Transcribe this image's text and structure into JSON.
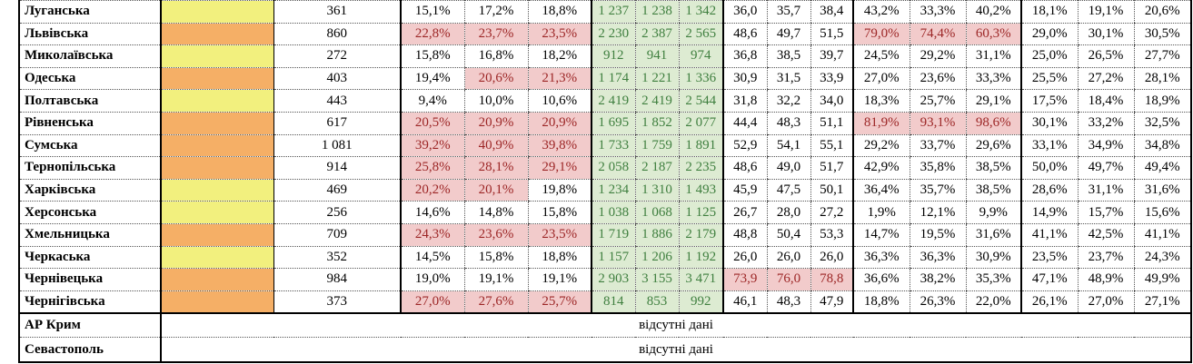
{
  "table": {
    "missing_text": "відсутні дані",
    "colors": {
      "yellow": "#F2F07E",
      "orange": "#F5AF66",
      "green_bg": "#DDEBD2",
      "green_text": "#3F7F3F",
      "pink_bg": "#F2CBCB",
      "red_text": "#9C2626"
    },
    "rows": [
      {
        "name": "Луганська",
        "swatch": "yellow",
        "count": "361",
        "pct_a": {
          "v": [
            "15,1%",
            "17,2%",
            "18,8%"
          ],
          "h": [
            0,
            0,
            0
          ]
        },
        "abs": {
          "v": [
            "1 237",
            "1 238",
            "1 342"
          ]
        },
        "dec": {
          "v": [
            "36,0",
            "35,7",
            "38,4"
          ],
          "h": [
            0,
            0,
            0
          ]
        },
        "pct_b": {
          "v": [
            "43,2%",
            "33,3%",
            "40,2%"
          ],
          "h": [
            0,
            0,
            0
          ]
        },
        "pct_c": {
          "v": [
            "18,1%",
            "19,1%",
            "20,6%"
          ]
        }
      },
      {
        "name": "Львівська",
        "swatch": "orange",
        "count": "860",
        "pct_a": {
          "v": [
            "22,8%",
            "23,7%",
            "23,5%"
          ],
          "h": [
            1,
            1,
            1
          ]
        },
        "abs": {
          "v": [
            "2 230",
            "2 387",
            "2 565"
          ]
        },
        "dec": {
          "v": [
            "48,6",
            "49,7",
            "51,5"
          ],
          "h": [
            0,
            0,
            0
          ]
        },
        "pct_b": {
          "v": [
            "79,0%",
            "74,4%",
            "60,3%"
          ],
          "h": [
            1,
            1,
            1
          ]
        },
        "pct_c": {
          "v": [
            "29,0%",
            "30,1%",
            "30,5%"
          ]
        }
      },
      {
        "name": "Миколаївська",
        "swatch": "yellow",
        "count": "272",
        "pct_a": {
          "v": [
            "15,8%",
            "16,8%",
            "18,2%"
          ],
          "h": [
            0,
            0,
            0
          ]
        },
        "abs": {
          "v": [
            "912",
            "941",
            "974"
          ]
        },
        "dec": {
          "v": [
            "36,8",
            "38,5",
            "39,7"
          ],
          "h": [
            0,
            0,
            0
          ]
        },
        "pct_b": {
          "v": [
            "24,5%",
            "29,2%",
            "31,1%"
          ],
          "h": [
            0,
            0,
            0
          ]
        },
        "pct_c": {
          "v": [
            "25,0%",
            "26,5%",
            "27,7%"
          ]
        }
      },
      {
        "name": "Одеська",
        "swatch": "orange",
        "count": "403",
        "pct_a": {
          "v": [
            "19,4%",
            "20,6%",
            "21,3%"
          ],
          "h": [
            0,
            1,
            1
          ]
        },
        "abs": {
          "v": [
            "1 174",
            "1 221",
            "1 336"
          ]
        },
        "dec": {
          "v": [
            "30,9",
            "31,5",
            "33,9"
          ],
          "h": [
            0,
            0,
            0
          ]
        },
        "pct_b": {
          "v": [
            "27,0%",
            "23,6%",
            "33,3%"
          ],
          "h": [
            0,
            0,
            0
          ]
        },
        "pct_c": {
          "v": [
            "25,5%",
            "27,2%",
            "28,1%"
          ]
        }
      },
      {
        "name": "Полтавська",
        "swatch": "yellow",
        "count": "443",
        "pct_a": {
          "v": [
            "9,4%",
            "10,0%",
            "10,6%"
          ],
          "h": [
            0,
            0,
            0
          ]
        },
        "abs": {
          "v": [
            "2 419",
            "2 419",
            "2 544"
          ]
        },
        "dec": {
          "v": [
            "31,8",
            "32,2",
            "34,0"
          ],
          "h": [
            0,
            0,
            0
          ]
        },
        "pct_b": {
          "v": [
            "18,3%",
            "25,7%",
            "29,1%"
          ],
          "h": [
            0,
            0,
            0
          ]
        },
        "pct_c": {
          "v": [
            "17,5%",
            "18,4%",
            "18,9%"
          ]
        }
      },
      {
        "name": "Рівненська",
        "swatch": "orange",
        "count": "617",
        "pct_a": {
          "v": [
            "20,5%",
            "20,9%",
            "20,9%"
          ],
          "h": [
            1,
            1,
            1
          ]
        },
        "abs": {
          "v": [
            "1 695",
            "1 852",
            "2 077"
          ]
        },
        "dec": {
          "v": [
            "44,4",
            "48,3",
            "51,1"
          ],
          "h": [
            0,
            0,
            0
          ]
        },
        "pct_b": {
          "v": [
            "81,9%",
            "93,1%",
            "98,6%"
          ],
          "h": [
            1,
            1,
            1
          ]
        },
        "pct_c": {
          "v": [
            "30,1%",
            "33,2%",
            "32,5%"
          ]
        }
      },
      {
        "name": "Сумська",
        "swatch": "orange",
        "count": "1 081",
        "pct_a": {
          "v": [
            "39,2%",
            "40,9%",
            "39,8%"
          ],
          "h": [
            1,
            1,
            1
          ]
        },
        "abs": {
          "v": [
            "1 733",
            "1 759",
            "1 891"
          ]
        },
        "dec": {
          "v": [
            "52,9",
            "54,1",
            "55,1"
          ],
          "h": [
            0,
            0,
            0
          ]
        },
        "pct_b": {
          "v": [
            "29,2%",
            "33,7%",
            "29,6%"
          ],
          "h": [
            0,
            0,
            0
          ]
        },
        "pct_c": {
          "v": [
            "33,1%",
            "34,9%",
            "34,8%"
          ]
        }
      },
      {
        "name": "Тернопільська",
        "swatch": "orange",
        "count": "914",
        "pct_a": {
          "v": [
            "25,8%",
            "28,1%",
            "29,1%"
          ],
          "h": [
            1,
            1,
            1
          ]
        },
        "abs": {
          "v": [
            "2 058",
            "2 187",
            "2 235"
          ]
        },
        "dec": {
          "v": [
            "48,6",
            "49,0",
            "51,7"
          ],
          "h": [
            0,
            0,
            0
          ]
        },
        "pct_b": {
          "v": [
            "42,9%",
            "35,8%",
            "38,5%"
          ],
          "h": [
            0,
            0,
            0
          ]
        },
        "pct_c": {
          "v": [
            "50,0%",
            "49,7%",
            "49,4%"
          ]
        }
      },
      {
        "name": "Харківська",
        "swatch": "yellow",
        "count": "469",
        "pct_a": {
          "v": [
            "20,2%",
            "20,1%",
            "19,8%"
          ],
          "h": [
            1,
            1,
            0
          ]
        },
        "abs": {
          "v": [
            "1 234",
            "1 310",
            "1 493"
          ]
        },
        "dec": {
          "v": [
            "45,9",
            "47,5",
            "50,1"
          ],
          "h": [
            0,
            0,
            0
          ]
        },
        "pct_b": {
          "v": [
            "36,4%",
            "35,7%",
            "38,5%"
          ],
          "h": [
            0,
            0,
            0
          ]
        },
        "pct_c": {
          "v": [
            "28,6%",
            "31,1%",
            "31,6%"
          ]
        }
      },
      {
        "name": "Херсонська",
        "swatch": "yellow",
        "count": "256",
        "pct_a": {
          "v": [
            "14,6%",
            "14,8%",
            "15,8%"
          ],
          "h": [
            0,
            0,
            0
          ]
        },
        "abs": {
          "v": [
            "1 038",
            "1 068",
            "1 125"
          ]
        },
        "dec": {
          "v": [
            "26,7",
            "28,0",
            "27,2"
          ],
          "h": [
            0,
            0,
            0
          ]
        },
        "pct_b": {
          "v": [
            "1,9%",
            "12,1%",
            "9,9%"
          ],
          "h": [
            0,
            0,
            0
          ]
        },
        "pct_c": {
          "v": [
            "14,9%",
            "15,7%",
            "15,6%"
          ]
        }
      },
      {
        "name": "Хмельницька",
        "swatch": "orange",
        "count": "709",
        "pct_a": {
          "v": [
            "24,3%",
            "23,6%",
            "23,5%"
          ],
          "h": [
            1,
            1,
            1
          ]
        },
        "abs": {
          "v": [
            "1 719",
            "1 886",
            "2 179"
          ]
        },
        "dec": {
          "v": [
            "48,8",
            "50,4",
            "53,3"
          ],
          "h": [
            0,
            0,
            0
          ]
        },
        "pct_b": {
          "v": [
            "14,7%",
            "19,5%",
            "31,6%"
          ],
          "h": [
            0,
            0,
            0
          ]
        },
        "pct_c": {
          "v": [
            "41,1%",
            "42,5%",
            "41,1%"
          ]
        }
      },
      {
        "name": "Черкаська",
        "swatch": "yellow",
        "count": "352",
        "pct_a": {
          "v": [
            "14,5%",
            "15,8%",
            "18,8%"
          ],
          "h": [
            0,
            0,
            0
          ]
        },
        "abs": {
          "v": [
            "1 157",
            "1 206",
            "1 192"
          ]
        },
        "dec": {
          "v": [
            "26,0",
            "26,0",
            "26,0"
          ],
          "h": [
            0,
            0,
            0
          ]
        },
        "pct_b": {
          "v": [
            "36,3%",
            "36,3%",
            "30,9%"
          ],
          "h": [
            0,
            0,
            0
          ]
        },
        "pct_c": {
          "v": [
            "23,5%",
            "23,7%",
            "24,3%"
          ]
        }
      },
      {
        "name": "Чернівецька",
        "swatch": "orange",
        "count": "984",
        "pct_a": {
          "v": [
            "19,0%",
            "19,1%",
            "19,1%"
          ],
          "h": [
            0,
            0,
            0
          ]
        },
        "abs": {
          "v": [
            "2 903",
            "3 155",
            "3 471"
          ]
        },
        "dec": {
          "v": [
            "73,9",
            "76,0",
            "78,8"
          ],
          "h": [
            1,
            1,
            1
          ]
        },
        "pct_b": {
          "v": [
            "36,6%",
            "38,2%",
            "35,3%"
          ],
          "h": [
            0,
            0,
            0
          ]
        },
        "pct_c": {
          "v": [
            "47,1%",
            "48,9%",
            "49,9%"
          ]
        }
      },
      {
        "name": "Чернігівська",
        "swatch": "orange",
        "count": "373",
        "pct_a": {
          "v": [
            "27,0%",
            "27,6%",
            "25,7%"
          ],
          "h": [
            1,
            1,
            1
          ]
        },
        "abs": {
          "v": [
            "814",
            "853",
            "992"
          ]
        },
        "dec": {
          "v": [
            "46,1",
            "48,3",
            "47,9"
          ],
          "h": [
            0,
            0,
            0
          ]
        },
        "pct_b": {
          "v": [
            "18,8%",
            "26,3%",
            "22,0%"
          ],
          "h": [
            0,
            0,
            0
          ]
        },
        "pct_c": {
          "v": [
            "26,1%",
            "27,0%",
            "27,1%"
          ]
        }
      },
      {
        "name": "АР Крим",
        "missing": true
      },
      {
        "name": "Севастополь",
        "missing": true
      }
    ]
  }
}
